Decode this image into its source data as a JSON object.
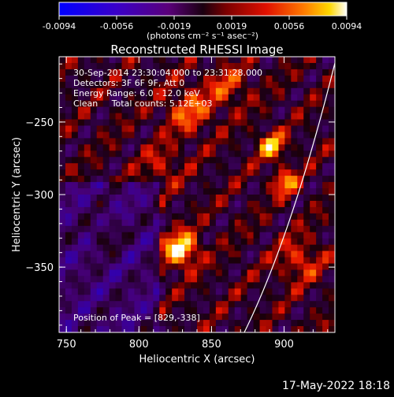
{
  "chart_data": {
    "type": "heatmap",
    "title": "Reconstructed RHESSI Image",
    "xlabel": "Heliocentric X (arcsec)",
    "ylabel": "Heliocentric Y (arcsec)",
    "xlim": [
      745,
      935
    ],
    "ylim": [
      -395,
      -205
    ],
    "xticks": [
      750,
      800,
      850,
      900
    ],
    "yticks": [
      -250,
      -300,
      -350
    ],
    "colorbar": {
      "min": -0.0094,
      "max": 0.0094,
      "ticks": [
        "-0.0094",
        "-0.0056",
        "-0.0019",
        "0.0019",
        "0.0056",
        "0.0094"
      ],
      "unit_label": "(photons cm⁻² s⁻¹ asec⁻²)",
      "colormap": "red-temperature (blue-purple negative, black-red-yellow-white positive)"
    },
    "annotations": {
      "time": "30-Sep-2014 23:30:04.000 to 23:31:28.000",
      "detectors": "Detectors: 3F 6F 9F, Att 0",
      "energy": "Energy Range: 6.0 - 12.0 keV",
      "clean": "Clean     Total counts: 5.12E+03",
      "peak": "Position of Peak = [829,-338]"
    },
    "peak_position": [
      829,
      -338
    ],
    "grid": false,
    "limb_line": true
  },
  "footer": {
    "date": "17-May-2022 18:18"
  },
  "colors": {
    "background": "#000000",
    "text": "#ffffff"
  }
}
